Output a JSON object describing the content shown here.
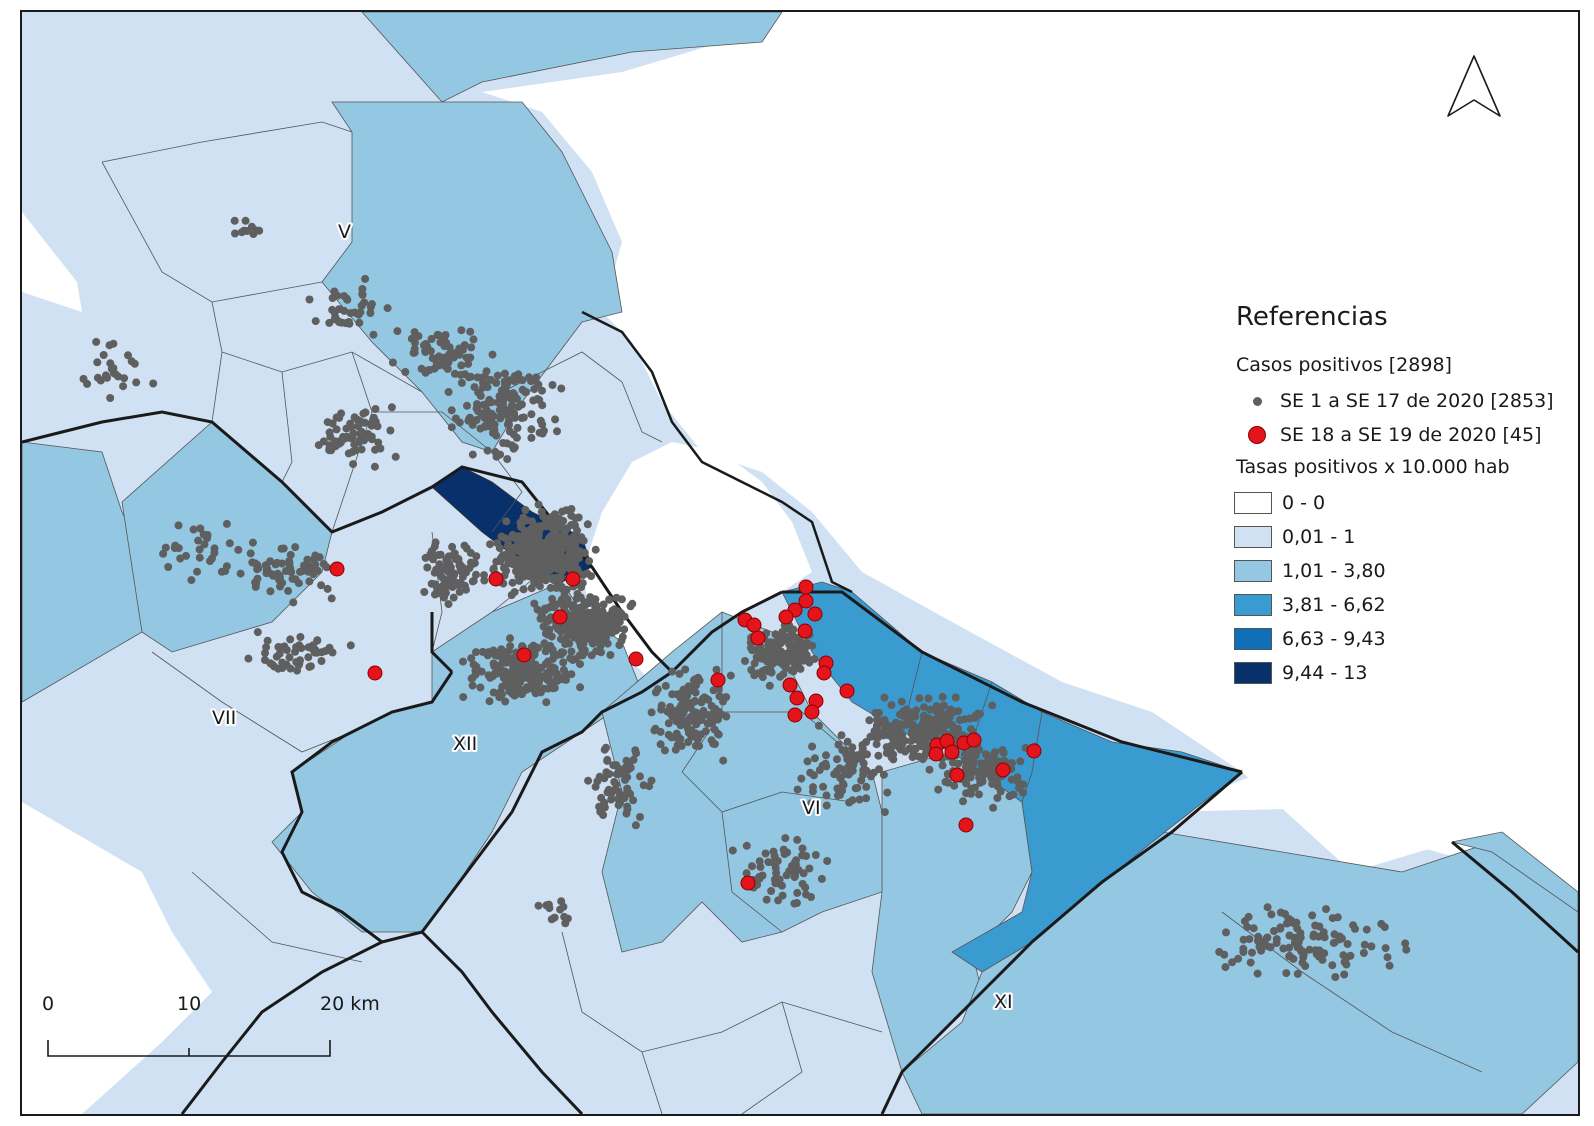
{
  "legend": {
    "title": "Referencias",
    "cases_heading": "Casos positivos [2898]",
    "cases": [
      {
        "label": "SE 1 a SE 17 de 2020 [2853]",
        "color": "#5f5f5f",
        "symbol": "small-gray-dot"
      },
      {
        "label": "SE 18 a SE 19 de 2020 [45]",
        "color": "#e3141c",
        "symbol": "large-red-dot"
      }
    ],
    "rates_heading": "Tasas positivos x 10.000 hab",
    "classes": [
      {
        "label": "0 - 0",
        "color": "#ffffff"
      },
      {
        "label": "0,01 - 1",
        "color": "#cfe1f2"
      },
      {
        "label": "1,01 - 3,80",
        "color": "#93c7e2"
      },
      {
        "label": "3,81 - 6,62",
        "color": "#3a9bd0"
      },
      {
        "label": "6,63 - 9,43",
        "color": "#0f70b8"
      },
      {
        "label": "9,44 - 13",
        "color": "#08306b"
      }
    ]
  },
  "region_labels": {
    "v": "V",
    "vii": "VII",
    "xii": "XII",
    "vi": "VI",
    "xi": "XI"
  },
  "scale_bar": {
    "tick0": "0",
    "tick1": "10",
    "tick2": "20 km"
  },
  "north_arrow": {
    "icon": "north-arrow-icon"
  }
}
